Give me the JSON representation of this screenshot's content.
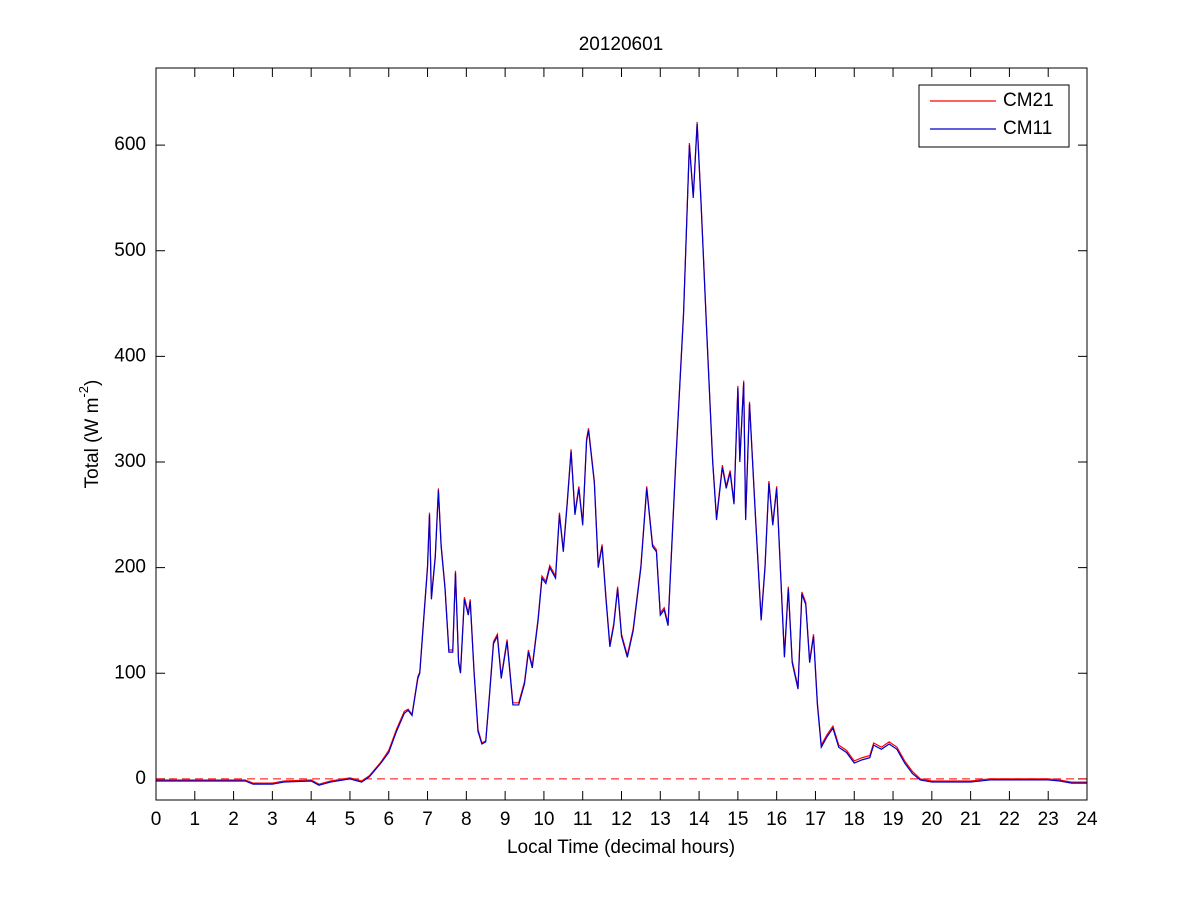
{
  "chart_data": {
    "type": "line",
    "title": "20120601",
    "x_label": "Local Time (decimal hours)",
    "y_label_parts": [
      "Total (W m",
      "-2",
      ")"
    ],
    "x": [
      0,
      2,
      2.3,
      2.5,
      3,
      3.3,
      4,
      4.2,
      4.5,
      5,
      5.3,
      5.5,
      5.8,
      6,
      6.2,
      6.4,
      6.5,
      6.6,
      6.75,
      6.8,
      6.9,
      7.0,
      7.05,
      7.1,
      7.2,
      7.28,
      7.35,
      7.45,
      7.55,
      7.65,
      7.72,
      7.8,
      7.85,
      7.95,
      8.05,
      8.1,
      8.2,
      8.3,
      8.4,
      8.5,
      8.6,
      8.7,
      8.8,
      8.9,
      9.05,
      9.2,
      9.35,
      9.5,
      9.6,
      9.7,
      9.85,
      9.95,
      10.05,
      10.15,
      10.3,
      10.4,
      10.5,
      10.6,
      10.7,
      10.8,
      10.9,
      11.0,
      11.1,
      11.15,
      11.3,
      11.4,
      11.5,
      11.6,
      11.7,
      11.8,
      11.9,
      12.0,
      12.15,
      12.3,
      12.5,
      12.65,
      12.8,
      12.9,
      13.0,
      13.1,
      13.2,
      13.4,
      13.6,
      13.75,
      13.85,
      13.95,
      14.05,
      14.2,
      14.35,
      14.45,
      14.6,
      14.7,
      14.8,
      14.9,
      15.0,
      15.05,
      15.15,
      15.2,
      15.3,
      15.45,
      15.6,
      15.7,
      15.8,
      15.9,
      16.0,
      16.1,
      16.2,
      16.3,
      16.4,
      16.55,
      16.65,
      16.75,
      16.85,
      16.95,
      17.05,
      17.15,
      17.3,
      17.45,
      17.6,
      17.8,
      18.0,
      18.2,
      18.4,
      18.5,
      18.7,
      18.9,
      19.1,
      19.3,
      19.5,
      19.7,
      20.0,
      21.0,
      21.5,
      22.0,
      23.0,
      23.3,
      23.6,
      24
    ],
    "series": [
      {
        "name": "CM21",
        "color": "#ff0000",
        "values": [
          -1,
          -1,
          -1,
          -4,
          -4,
          -2,
          -1,
          -5,
          -2,
          1,
          -2,
          3,
          16,
          27,
          47,
          64,
          66,
          61,
          97,
          101,
          152,
          202,
          252,
          172,
          212,
          275,
          222,
          182,
          122,
          122,
          197,
          112,
          102,
          172,
          157,
          170,
          102,
          47,
          34,
          36,
          82,
          130,
          137,
          97,
          132,
          72,
          72,
          92,
          122,
          107,
          152,
          192,
          187,
          202,
          192,
          252,
          217,
          262,
          312,
          252,
          277,
          242,
          322,
          332,
          282,
          202,
          222,
          172,
          127,
          147,
          182,
          137,
          117,
          142,
          202,
          277,
          222,
          217,
          157,
          162,
          147,
          302,
          442,
          602,
          552,
          622,
          547,
          422,
          302,
          247,
          297,
          277,
          292,
          262,
          372,
          302,
          377,
          247,
          357,
          252,
          152,
          202,
          282,
          242,
          277,
          197,
          117,
          182,
          112,
          87,
          177,
          167,
          112,
          137,
          72,
          32,
          42,
          50,
          32,
          27,
          17,
          20,
          22,
          34,
          30,
          35,
          30,
          17,
          7,
          0,
          -2,
          -2,
          0,
          0,
          0,
          -1,
          -3,
          -3
        ]
      },
      {
        "name": "CM11",
        "color": "#0000cc",
        "values": [
          -2,
          -2,
          -2,
          -5,
          -5,
          -3,
          -2,
          -6,
          -3,
          0,
          -3,
          2,
          15,
          25,
          45,
          62,
          65,
          60,
          95,
          100,
          150,
          200,
          250,
          170,
          210,
          273,
          220,
          180,
          120,
          120,
          195,
          110,
          100,
          170,
          155,
          168,
          100,
          45,
          33,
          35,
          80,
          128,
          135,
          95,
          130,
          70,
          70,
          90,
          120,
          105,
          150,
          190,
          185,
          200,
          190,
          250,
          215,
          260,
          310,
          250,
          275,
          240,
          320,
          330,
          280,
          200,
          220,
          170,
          125,
          145,
          180,
          135,
          115,
          140,
          200,
          275,
          220,
          215,
          155,
          160,
          145,
          300,
          440,
          600,
          550,
          620,
          545,
          420,
          300,
          245,
          295,
          275,
          290,
          260,
          370,
          300,
          375,
          245,
          355,
          250,
          150,
          200,
          280,
          240,
          275,
          195,
          115,
          180,
          110,
          85,
          175,
          165,
          110,
          135,
          70,
          30,
          40,
          48,
          30,
          25,
          15,
          18,
          20,
          32,
          28,
          33,
          28,
          15,
          5,
          -1,
          -3,
          -3,
          -1,
          -1,
          -1,
          -2,
          -4,
          -4
        ]
      }
    ],
    "reference_line": {
      "y": 0,
      "color": "#ff0000",
      "style": "dashed"
    },
    "xlim": [
      0,
      24
    ],
    "xticks": [
      0,
      1,
      2,
      3,
      4,
      5,
      6,
      7,
      8,
      9,
      10,
      11,
      12,
      13,
      14,
      15,
      16,
      17,
      18,
      19,
      20,
      21,
      22,
      23,
      24
    ],
    "ylim": [
      -20,
      673
    ],
    "yticks": [
      0,
      100,
      200,
      300,
      400,
      500,
      600
    ],
    "grid": false,
    "legend": "northeast"
  }
}
